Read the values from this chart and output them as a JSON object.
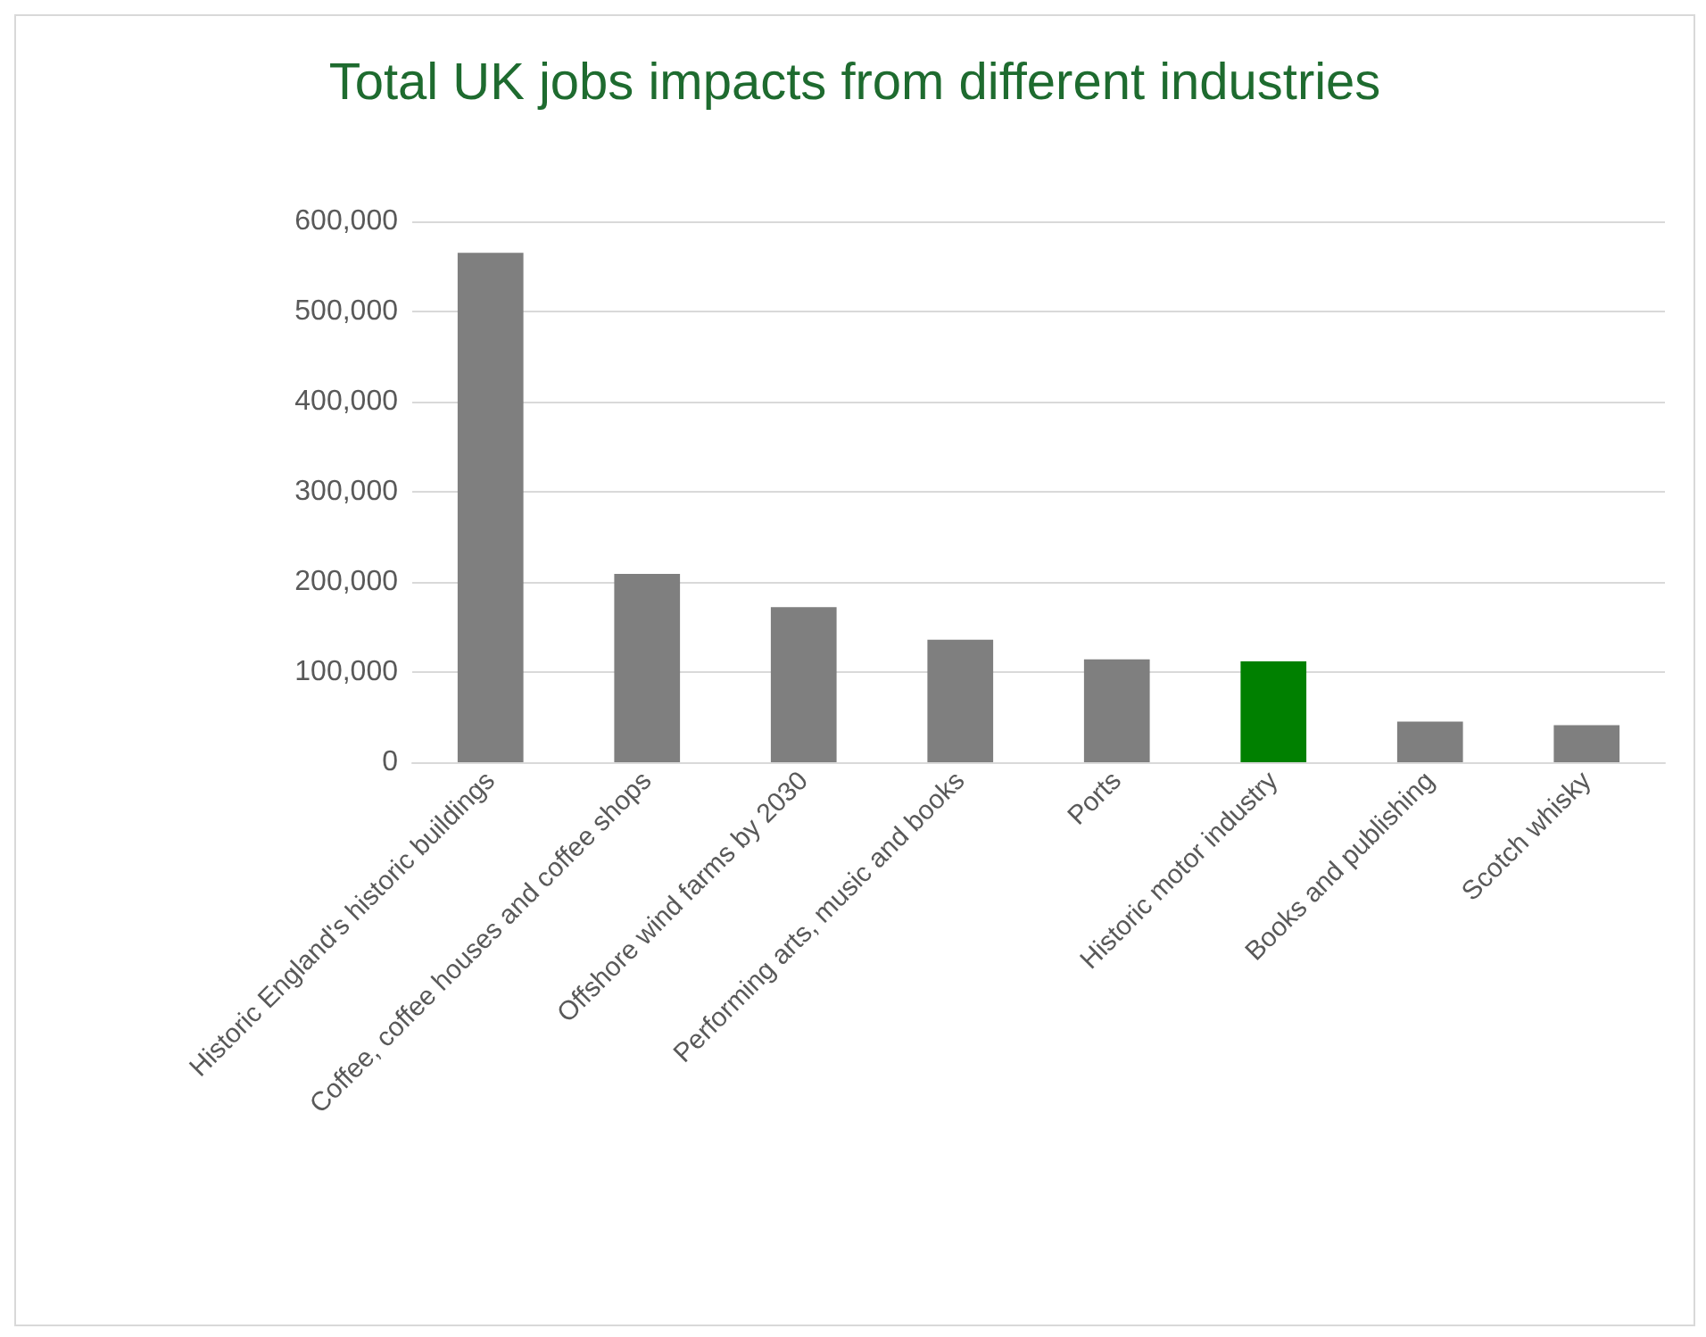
{
  "chart_data": {
    "type": "bar",
    "title": "Total UK jobs impacts from different industries",
    "categories": [
      "Historic England's historic buildings",
      "Coffee, coffee houses and coffee shops",
      "Offshore wind farms by 2030",
      "Performing arts, music and books",
      "Ports",
      "Historic motor industry",
      "Books and publishing",
      "Scotch whisky"
    ],
    "values": [
      565000,
      209000,
      172000,
      136000,
      114000,
      112000,
      45000,
      41000
    ],
    "colors": [
      "#7f7f7f",
      "#7f7f7f",
      "#7f7f7f",
      "#7f7f7f",
      "#7f7f7f",
      "#008000",
      "#7f7f7f",
      "#7f7f7f"
    ],
    "ylim": [
      0,
      600000
    ],
    "yticks": [
      0,
      {
        "value": 100000,
        "label": "100,000"
      },
      {
        "value": 200000,
        "label": "200,000"
      },
      {
        "value": 300000,
        "label": "300,000"
      },
      {
        "value": 400000,
        "label": "400,000"
      },
      {
        "value": 500000,
        "label": "500,000"
      },
      {
        "value": 600000,
        "label": "600,000"
      }
    ],
    "grid": "y"
  }
}
